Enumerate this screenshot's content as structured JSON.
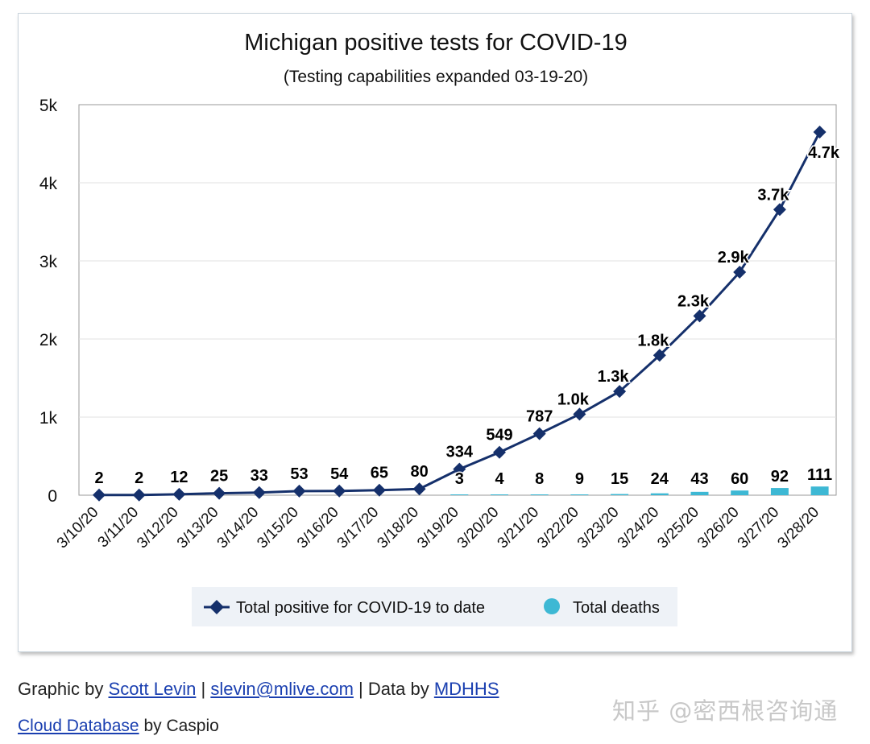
{
  "chart_data": {
    "type": "line",
    "title": "Michigan positive tests for COVID-19",
    "subtitle": "(Testing capabilities expanded 03-19-20)",
    "categories": [
      "3/10/20",
      "3/11/20",
      "3/12/20",
      "3/13/20",
      "3/14/20",
      "3/15/20",
      "3/16/20",
      "3/17/20",
      "3/18/20",
      "3/19/20",
      "3/20/20",
      "3/21/20",
      "3/22/20",
      "3/23/20",
      "3/24/20",
      "3/25/20",
      "3/26/20",
      "3/27/20",
      "3/28/20"
    ],
    "ylim": [
      0,
      5000
    ],
    "yticks": [
      0,
      1000,
      2000,
      3000,
      4000,
      5000
    ],
    "ytick_labels": [
      "0",
      "1k",
      "2k",
      "3k",
      "4k",
      "5k"
    ],
    "grid": true,
    "legend_position": "bottom",
    "series": [
      {
        "name": "Total positive for COVID-19 to date",
        "type": "line",
        "color": "#15306b",
        "values": [
          2,
          2,
          12,
          25,
          33,
          53,
          54,
          65,
          80,
          334,
          549,
          787,
          1037,
          1328,
          1791,
          2295,
          2856,
          3657,
          4650
        ],
        "labels": [
          "2",
          "2",
          "12",
          "25",
          "33",
          "53",
          "54",
          "65",
          "80",
          "334",
          "549",
          "787",
          "1.0k",
          "1.3k",
          "1.8k",
          "2.3k",
          "2.9k",
          "3.7k",
          "4.7k"
        ]
      },
      {
        "name": "Total deaths",
        "type": "bar",
        "color": "#3db8d4",
        "values": [
          0,
          0,
          0,
          0,
          0,
          0,
          0,
          0,
          0,
          3,
          4,
          8,
          9,
          15,
          24,
          43,
          60,
          92,
          111
        ],
        "labels": [
          "",
          "",
          "",
          "",
          "",
          "",
          "",
          "",
          "",
          "3",
          "4",
          "8",
          "9",
          "15",
          "24",
          "43",
          "60",
          "92",
          "111"
        ]
      }
    ]
  },
  "footer": {
    "graphic_by": "Graphic by",
    "author": "Scott Levin",
    "sep1": "|",
    "email": "slevin@mlive.com",
    "sep2": "| Data by",
    "source": "MDHHS",
    "cloud_db": "Cloud Database",
    "by_caspio": "by Caspio"
  },
  "watermark": "知乎 @密西根咨询通"
}
